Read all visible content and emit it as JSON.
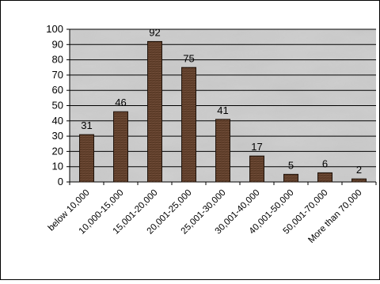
{
  "chart_data": {
    "type": "bar",
    "title": "",
    "xlabel": "",
    "ylabel": "",
    "categories": [
      "below 10,000",
      "10,000-15,000",
      "15,001-20,000",
      "20,001-25,000",
      "25,001-30,000",
      "30,001-40,000",
      "40,001-50,000",
      "50,001-70,000",
      "More than 70,000"
    ],
    "values": [
      31,
      46,
      92,
      75,
      41,
      17,
      5,
      6,
      2
    ],
    "ylim": [
      0,
      100
    ],
    "yticks": [
      0,
      10,
      20,
      30,
      40,
      50,
      60,
      70,
      80,
      90,
      100
    ],
    "grid": true,
    "legend": false,
    "data_labels": true,
    "colors": {
      "bar_fill": "#5a3a26",
      "bar_stroke": "#1e120a",
      "plot_background": "#cfcfcf",
      "gridline": "#000000",
      "frame": "#000000"
    }
  }
}
